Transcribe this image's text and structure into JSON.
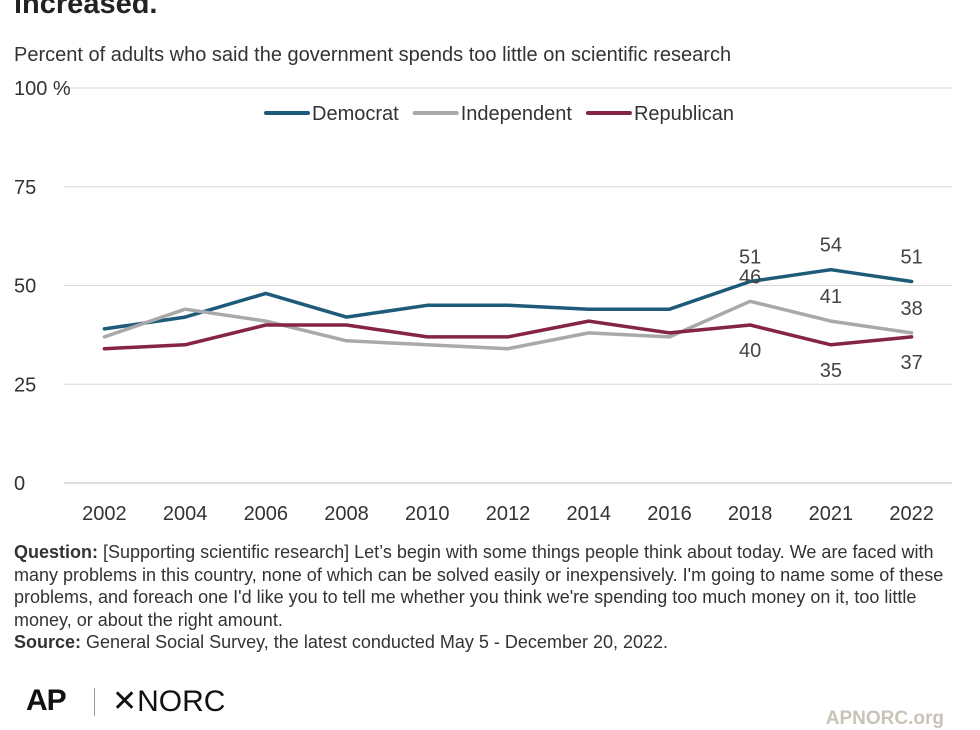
{
  "title": "increased.",
  "subtitle": "Percent of adults who said the government spends too little on scientific research",
  "chart_data": {
    "type": "line",
    "categories": [
      "2002",
      "2004",
      "2006",
      "2008",
      "2010",
      "2012",
      "2014",
      "2016",
      "2018",
      "2021",
      "2022"
    ],
    "series": [
      {
        "name": "Democrat",
        "color": "#1d5b79",
        "values": [
          39,
          42,
          48,
          42,
          45,
          45,
          44,
          44,
          51,
          54,
          51
        ]
      },
      {
        "name": "Independent",
        "color": "#a9a9a9",
        "values": [
          37,
          44,
          41,
          36,
          35,
          34,
          38,
          37,
          46,
          41,
          38
        ]
      },
      {
        "name": "Republican",
        "color": "#862543",
        "values": [
          34,
          35,
          40,
          40,
          37,
          37,
          41,
          38,
          40,
          35,
          37
        ]
      }
    ],
    "ylim": [
      0,
      100
    ],
    "yticks": [
      0,
      25,
      50,
      75,
      100
    ],
    "ytick_labels": [
      "0",
      "25",
      "50",
      "75",
      "100 %"
    ],
    "grid": true,
    "legend": "top",
    "data_labels": [
      {
        "series": "Democrat",
        "category": "2018",
        "text": "51",
        "pos": "above"
      },
      {
        "series": "Democrat",
        "category": "2021",
        "text": "54",
        "pos": "above"
      },
      {
        "series": "Democrat",
        "category": "2022",
        "text": "51",
        "pos": "above"
      },
      {
        "series": "Independent",
        "category": "2018",
        "text": "46",
        "pos": "above"
      },
      {
        "series": "Independent",
        "category": "2021",
        "text": "41",
        "pos": "above"
      },
      {
        "series": "Independent",
        "category": "2022",
        "text": "38",
        "pos": "above"
      },
      {
        "series": "Republican",
        "category": "2018",
        "text": "40",
        "pos": "below"
      },
      {
        "series": "Republican",
        "category": "2021",
        "text": "35",
        "pos": "below"
      },
      {
        "series": "Republican",
        "category": "2022",
        "text": "37",
        "pos": "below"
      }
    ]
  },
  "notes": {
    "question_label": "Question:",
    "question_text": "[Supporting scientific research] Let’s begin with some things people think about today. We are faced with many problems in this country, none of which can be solved easily or inexpensively. I'm going to name some of these problems, and foreach one I'd like you to tell me whether you think we're spending too much money on it, too little money, or about the right amount.",
    "source_label": "Source:",
    "source_text": "General Social Survey, the latest conducted May 5 - December 20, 2022."
  },
  "footer": {
    "logo_ap": "AP",
    "logo_norc": "✕NORC",
    "site": "APNORC.org"
  }
}
